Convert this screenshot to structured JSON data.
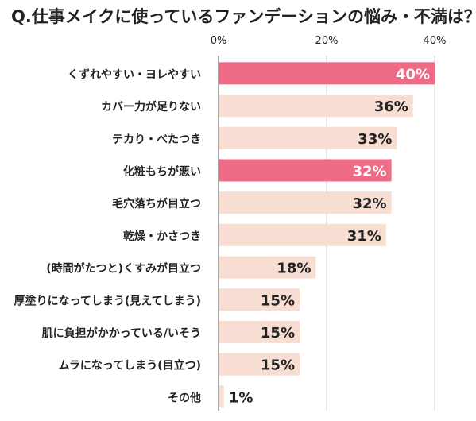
{
  "title": "Q.仕事メイクに使っているファンデーションの悩み・不満は？",
  "chart_data": {
    "type": "bar",
    "orientation": "horizontal",
    "title": "Q.仕事メイクに使っているファンデーションの悩み・不満は？",
    "xlabel": "",
    "ylabel": "",
    "xlim": [
      0,
      40
    ],
    "xticks": [
      0,
      20,
      40
    ],
    "xtick_labels": [
      "0%",
      "20%",
      "40%"
    ],
    "grid": true,
    "legend": false,
    "categories": [
      "くずれやすい・ヨレやすい",
      "カバー力が足りない",
      "テカり・べたつき",
      "化粧もちが悪い",
      "毛穴落ちが目立つ",
      "乾燥・かさつき",
      "(時間がたつと)くすみが目立つ",
      "厚塗りになってしまう(見えてしまう)",
      "肌に負担がかかっている/いそう",
      "ムラになってしまう(目立つ)",
      "その他"
    ],
    "values": [
      40,
      36,
      33,
      32,
      32,
      31,
      18,
      15,
      15,
      15,
      1
    ],
    "value_labels": [
      "40%",
      "36%",
      "33%",
      "32%",
      "32%",
      "31%",
      "18%",
      "15%",
      "15%",
      "15%",
      "1%"
    ],
    "highlighted": [
      true,
      false,
      false,
      true,
      false,
      false,
      false,
      false,
      false,
      false,
      false
    ],
    "colors": {
      "highlight_bar": "#ee6b86",
      "normal_bar": "#f8ddd3",
      "highlight_label": "#ffffff",
      "normal_label": "#222222",
      "axis_line": "#555555",
      "grid_line": "#cccccc",
      "text": "#222222"
    }
  }
}
